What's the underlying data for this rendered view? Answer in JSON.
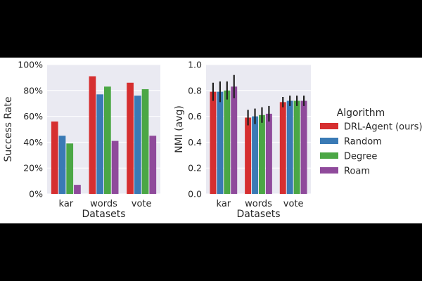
{
  "colors": {
    "background": "#000000",
    "panel": "#ffffff",
    "plot_bg": "#eaeaf2",
    "grid": "#ffffff",
    "text": "#262626",
    "error_bar": "#1f1f1f"
  },
  "legend": {
    "title": "Algorithm",
    "items": [
      {
        "label": "DRL-Agent (ours)",
        "color": "#d62f30"
      },
      {
        "label": "Random",
        "color": "#3a7ab5"
      },
      {
        "label": "Degree",
        "color": "#4ba745"
      },
      {
        "label": "Roam",
        "color": "#8f4a9b"
      }
    ]
  },
  "chart_data": [
    {
      "type": "bar",
      "title": "",
      "xlabel": "Datasets",
      "ylabel": "Success Rate",
      "categories": [
        "kar",
        "words",
        "vote"
      ],
      "ylim": [
        0,
        1.0
      ],
      "yticks": [
        0,
        0.2,
        0.4,
        0.6,
        0.8,
        1.0
      ],
      "ytick_labels": [
        "0%",
        "20%",
        "40%",
        "60%",
        "80%",
        "100%"
      ],
      "grid": true,
      "series": [
        {
          "name": "DRL-Agent (ours)",
          "values": [
            0.56,
            0.91,
            0.86
          ]
        },
        {
          "name": "Random",
          "values": [
            0.45,
            0.77,
            0.76
          ]
        },
        {
          "name": "Degree",
          "values": [
            0.39,
            0.83,
            0.81
          ]
        },
        {
          "name": "Roam",
          "values": [
            0.07,
            0.41,
            0.45
          ]
        }
      ]
    },
    {
      "type": "bar",
      "title": "",
      "xlabel": "Datasets",
      "ylabel": "NMI (avg)",
      "categories": [
        "kar",
        "words",
        "vote"
      ],
      "ylim": [
        0,
        1.0
      ],
      "yticks": [
        0,
        0.2,
        0.4,
        0.6,
        0.8,
        1.0
      ],
      "ytick_labels": [
        "0.0",
        "0.2",
        "0.4",
        "0.6",
        "0.8",
        "1.0"
      ],
      "grid": true,
      "legend_position": "right",
      "series": [
        {
          "name": "DRL-Agent (ours)",
          "values": [
            0.79,
            0.59,
            0.71
          ],
          "errors": [
            0.07,
            0.06,
            0.04
          ]
        },
        {
          "name": "Random",
          "values": [
            0.79,
            0.6,
            0.72
          ],
          "errors": [
            0.08,
            0.06,
            0.04
          ]
        },
        {
          "name": "Degree",
          "values": [
            0.8,
            0.61,
            0.72
          ],
          "errors": [
            0.07,
            0.06,
            0.04
          ]
        },
        {
          "name": "Roam",
          "values": [
            0.83,
            0.62,
            0.72
          ],
          "errors": [
            0.09,
            0.06,
            0.04
          ]
        }
      ]
    }
  ]
}
